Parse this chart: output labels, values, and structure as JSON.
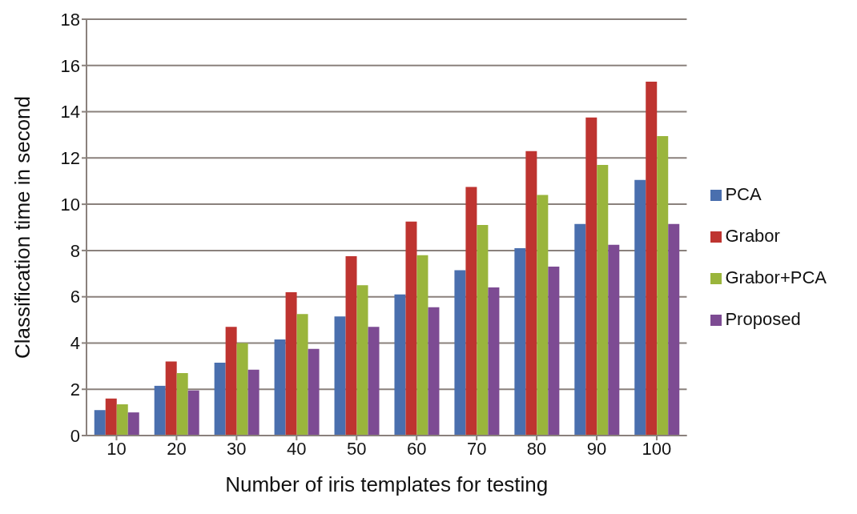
{
  "chart_data": {
    "type": "bar",
    "xlabel": "Number of iris templates for testing",
    "ylabel": "Classification time in second",
    "categories": [
      "10",
      "20",
      "30",
      "40",
      "50",
      "60",
      "70",
      "80",
      "90",
      "100"
    ],
    "series": [
      {
        "name": "PCA",
        "color": "#4a6fae",
        "values": [
          1.1,
          2.15,
          3.15,
          4.15,
          5.15,
          6.1,
          7.15,
          8.1,
          9.15,
          11.05
        ]
      },
      {
        "name": "Grabor",
        "color": "#be3430",
        "values": [
          1.6,
          3.2,
          4.7,
          6.2,
          7.75,
          9.25,
          10.75,
          12.3,
          13.75,
          15.3
        ]
      },
      {
        "name": "Grabor+PCA",
        "color": "#9ab53c",
        "values": [
          1.35,
          2.7,
          4.0,
          5.25,
          6.5,
          7.8,
          9.1,
          10.4,
          11.7,
          12.95
        ]
      },
      {
        "name": "Proposed",
        "color": "#7d4b93",
        "values": [
          1.0,
          1.95,
          2.85,
          3.75,
          4.7,
          5.55,
          6.4,
          7.3,
          8.25,
          9.15
        ]
      }
    ],
    "ylim": [
      0,
      18
    ],
    "yticks": [
      0,
      2,
      4,
      6,
      8,
      10,
      12,
      14,
      16,
      18
    ],
    "grid": "y",
    "legend": "right"
  }
}
